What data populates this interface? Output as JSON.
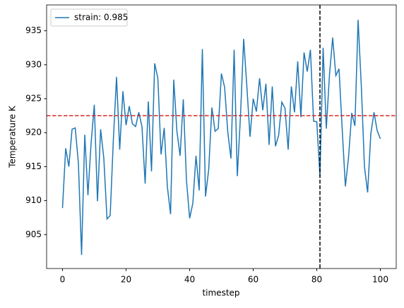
{
  "chart_data": {
    "type": "line",
    "xlabel": "timestep",
    "ylabel": "Temperature K",
    "x": [
      0,
      1,
      2,
      3,
      4,
      5,
      6,
      7,
      8,
      9,
      10,
      11,
      12,
      13,
      14,
      15,
      16,
      17,
      18,
      19,
      20,
      21,
      22,
      23,
      24,
      25,
      26,
      27,
      28,
      29,
      30,
      31,
      32,
      33,
      34,
      35,
      36,
      37,
      38,
      39,
      40,
      41,
      42,
      43,
      44,
      45,
      46,
      47,
      48,
      49,
      50,
      51,
      52,
      53,
      54,
      55,
      56,
      57,
      58,
      59,
      60,
      61,
      62,
      63,
      64,
      65,
      66,
      67,
      68,
      69,
      70,
      71,
      72,
      73,
      74,
      75,
      76,
      77,
      78,
      79,
      80,
      81,
      82,
      83,
      84,
      85,
      86,
      87,
      88,
      89,
      90,
      91,
      92,
      93,
      94,
      95,
      96,
      97,
      98,
      99,
      100
    ],
    "series": [
      {
        "name": "strain: 0.985",
        "color": "#1f77b4",
        "values": [
          908.9,
          917.7,
          915,
          920.5,
          920.7,
          915.5,
          902,
          919.7,
          910.8,
          918.5,
          924.1,
          909.9,
          920.5,
          916.2,
          907.3,
          907.8,
          919,
          928.2,
          917.5,
          926.1,
          921.1,
          923.9,
          921.3,
          920.9,
          923,
          920.9,
          912.5,
          924.6,
          914.3,
          930.2,
          928,
          916.8,
          920.7,
          912,
          908,
          927.8,
          920.2,
          916.6,
          924.9,
          913,
          907.4,
          909.6,
          916.6,
          911.5,
          932.3,
          910.6,
          914.6,
          923.7,
          920.2,
          920.6,
          928.7,
          926.7,
          920.1,
          916.2,
          932.2,
          913.6,
          922.5,
          933.8,
          926.8,
          919.4,
          925,
          923.1,
          928,
          923.3,
          927.2,
          918.2,
          926.8,
          918,
          919.6,
          924.5,
          923.6,
          917.5,
          926.8,
          923,
          930.5,
          922.3,
          931.8,
          929,
          932.2,
          921.7,
          921.6,
          913.6,
          932.5,
          920.6,
          928.5,
          934,
          928.4,
          929.4,
          920.5,
          912.1,
          916.4,
          922.9,
          921,
          936.6,
          927,
          915,
          911.2,
          919.8,
          923,
          920.3,
          919.1
        ]
      }
    ],
    "hline": {
      "value": 922.5,
      "color": "#d62728"
    },
    "vline": {
      "value": 81,
      "color": "#000000"
    },
    "xlim": [
      -5,
      105
    ],
    "xticks": [
      0,
      20,
      40,
      60,
      80,
      100
    ],
    "ylim": [
      900.0,
      938.8
    ],
    "yticks": [
      905,
      910,
      915,
      920,
      925,
      930,
      935
    ],
    "grid": false,
    "legend": "upper left"
  }
}
